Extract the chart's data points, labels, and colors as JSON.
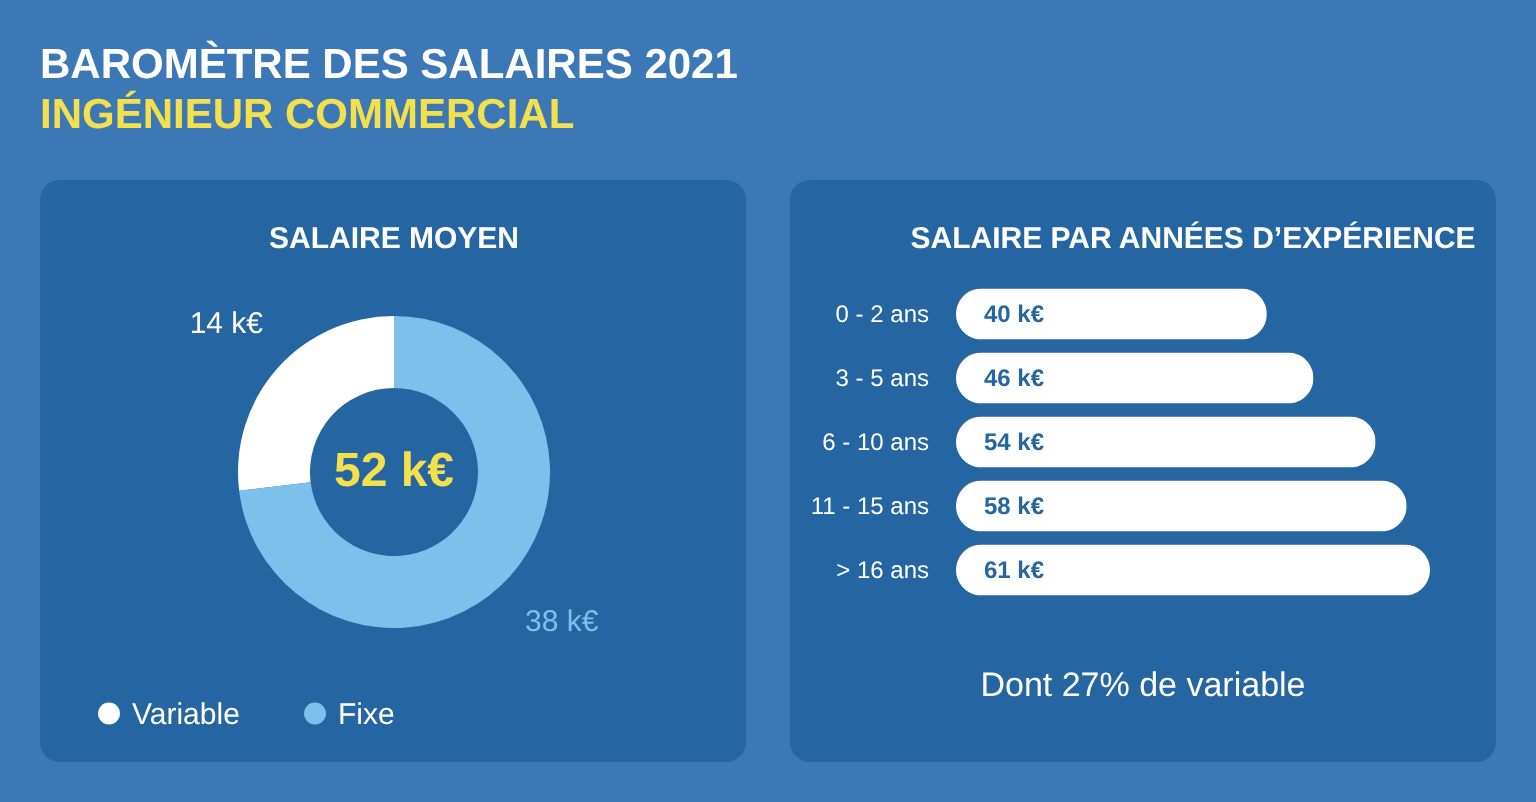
{
  "chart_data": [
    {
      "type": "other",
      "title": "BAROMÈTRE DES SALAIRES 2021",
      "subtitle": "INGÉNIEUR COMMERCIAL"
    },
    {
      "type": "donut",
      "title": "SALAIRE MOYEN",
      "categories": [
        "Variable",
        "Fixe"
      ],
      "values": [
        14,
        38
      ],
      "colors": [
        "#ffffff",
        "#7dc0eb"
      ],
      "value_labels": [
        "14 k€",
        "38 k€"
      ],
      "annotations": [
        "52 k€"
      ],
      "legend": "bottom"
    },
    {
      "type": "bar",
      "orientation": "horizontal",
      "title": "SALAIRE PAR ANNÉES D’EXPÉRIENCE",
      "categories": [
        "0 - 2 ans",
        "3 - 5 ans",
        "6 - 10 ans",
        "11 - 15 ans",
        "> 16 ans"
      ],
      "values": [
        40,
        46,
        54,
        58,
        61
      ],
      "color": "#ffffff",
      "value_labels": [
        "40 k€",
        "46 k€",
        "54 k€",
        "58 k€",
        "61 k€"
      ],
      "annotations": [
        "Dont 27% de variable"
      ]
    }
  ]
}
